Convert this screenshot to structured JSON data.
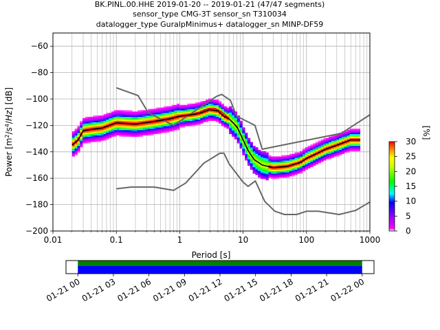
{
  "title_lines": [
    "BK.PINL.00.HHE   2019-01-20 -- 2019-01-21  (47/47 segments)",
    "sensor_type CMG-3T sensor_sn T310034",
    "datalogger_type GuralpMinimus+ datalogger_sn MINP-DF59"
  ],
  "chart_data": [
    {
      "type": "heatmap",
      "title": "BK.PINL.00.HHE   2019-01-20 -- 2019-01-21  (47/47 segments)",
      "xlabel": "Period [s]",
      "ylabel": "Power [m²/s⁴/Hz] [dB]",
      "x_scale": "log",
      "xlim": [
        0.01,
        1000
      ],
      "ylim": [
        -200,
        -50
      ],
      "x_ticks": [
        0.01,
        0.1,
        1,
        10,
        100,
        1000
      ],
      "x_tick_labels": [
        "0.01",
        "0.1",
        "1",
        "10",
        "100",
        "1000"
      ],
      "y_ticks": [
        -200,
        -180,
        -160,
        -140,
        -120,
        -100,
        -80,
        -60
      ],
      "y_tick_labels": [
        "−200",
        "−180",
        "−160",
        "−140",
        "−120",
        "−100",
        "−80",
        "−60"
      ],
      "grid": true,
      "colorbar": {
        "label": "[%]",
        "range": [
          0,
          30
        ],
        "ticks": [
          0,
          5,
          10,
          15,
          20,
          25,
          30
        ],
        "tick_labels": [
          "0",
          "5",
          "10",
          "15",
          "20",
          "25",
          "30"
        ]
      },
      "series": [
        {
          "role": "mean",
          "color": "#000000",
          "x": [
            0.02,
            0.025,
            0.03,
            0.04,
            0.06,
            0.1,
            0.2,
            0.4,
            0.7,
            1,
            1.5,
            2,
            3,
            4,
            5,
            6,
            8,
            10,
            12,
            15,
            20,
            30,
            50,
            80,
            100,
            150,
            200,
            300,
            500,
            700
          ],
          "y": [
            -135,
            -131,
            -124,
            -123,
            -122,
            -118,
            -119,
            -117,
            -115,
            -113,
            -112,
            -111,
            -108,
            -109,
            -113,
            -115,
            -121,
            -131,
            -139,
            -146,
            -150,
            -152,
            -151,
            -148,
            -145,
            -141,
            -138,
            -135,
            -131,
            -131
          ]
        },
        {
          "role": "mode",
          "color": "#cc0000",
          "x": [
            1,
            1.5,
            2,
            2.5,
            3,
            3.5,
            4,
            5,
            6,
            7,
            8
          ],
          "y": [
            -113,
            -112,
            -110,
            -108,
            -107,
            -107,
            -108,
            -111,
            -115,
            -118,
            -122
          ]
        },
        {
          "role": "noise-model-high",
          "color": "#666666",
          "x": [
            0.1,
            0.22,
            0.32,
            0.8,
            3.8,
            4.6,
            6.3,
            7.9,
            15.4,
            20,
            354.8,
            1000
          ],
          "y": [
            -91.5,
            -97.4,
            -110.5,
            -120,
            -98,
            -96.5,
            -101,
            -113,
            -120,
            -138,
            -126,
            -112
          ]
        },
        {
          "role": "noise-model-low",
          "color": "#666666",
          "x": [
            0.1,
            0.17,
            0.4,
            0.8,
            1.24,
            2.4,
            4.3,
            5,
            6,
            10,
            12,
            15.6,
            21.9,
            31.6,
            45,
            70,
            101,
            154,
            328,
            600,
            1000
          ],
          "y": [
            -168,
            -166.7,
            -166.7,
            -169.2,
            -163.7,
            -148.6,
            -141.1,
            -141.1,
            -149,
            -163,
            -166.2,
            -162.1,
            -177.5,
            -185,
            -187.5,
            -187.5,
            -185,
            -185,
            -187.5,
            -184.4,
            -178
          ]
        }
      ]
    },
    {
      "type": "bar",
      "title": "",
      "x_tick_labels": [
        "01-21 00",
        "01-21 03",
        "01-21 06",
        "01-21 09",
        "01-21 12",
        "01-21 15",
        "01-21 18",
        "01-21 21",
        "01-22 00"
      ],
      "xlim_hours": [
        -1,
        25
      ],
      "series": [
        {
          "role": "data-coverage",
          "color": "#008000",
          "start_hour": 0,
          "end_hour": 24
        },
        {
          "role": "segment-coverage",
          "color": "#0000ff",
          "start_hour": 0,
          "end_hour": 24
        }
      ]
    }
  ]
}
